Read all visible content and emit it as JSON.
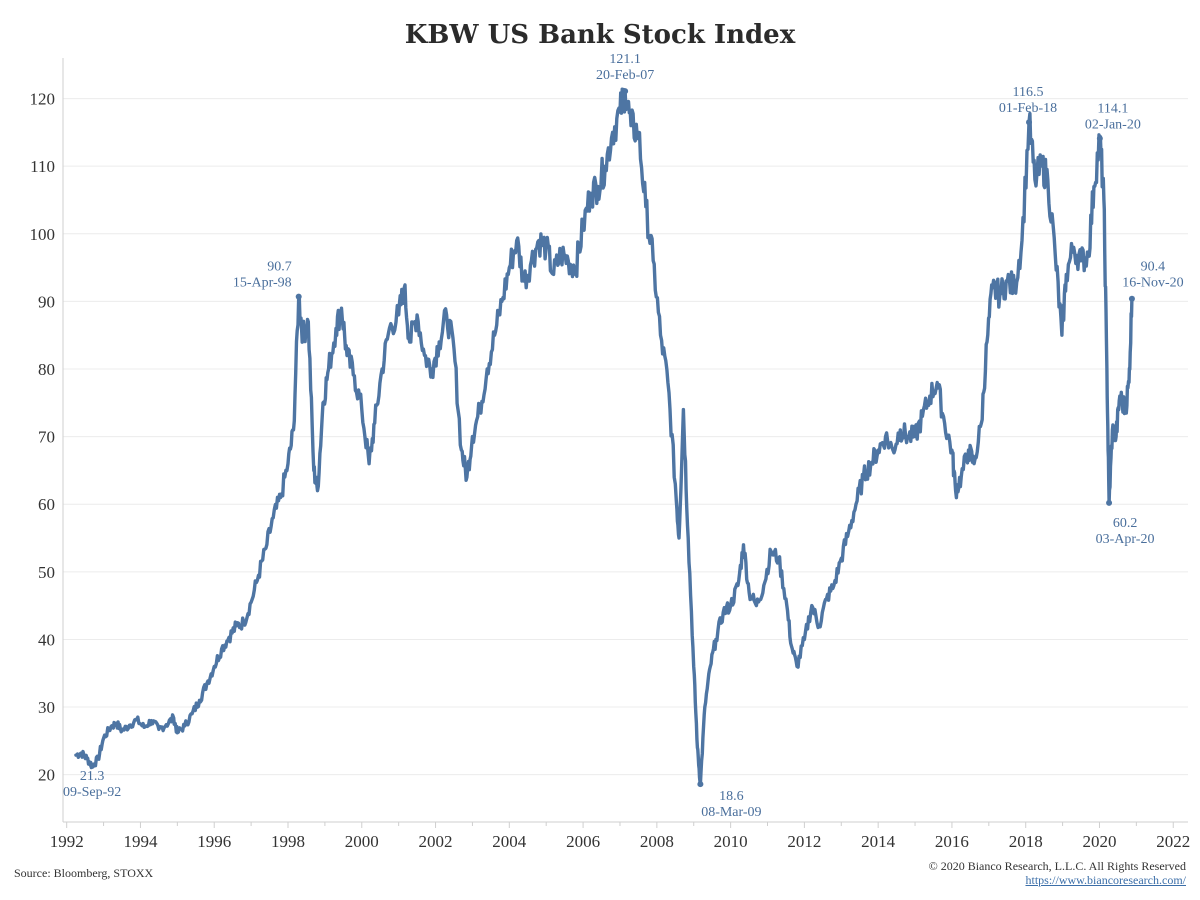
{
  "chart_data": {
    "type": "line",
    "title": "KBW US Bank Stock Index",
    "xlabel": "",
    "ylabel": "",
    "xlim": [
      1991.9,
      2022.4
    ],
    "ylim": [
      13,
      126
    ],
    "x_ticks": [
      "1992",
      "1994",
      "1996",
      "1998",
      "2000",
      "2002",
      "2004",
      "2006",
      "2008",
      "2010",
      "2012",
      "2014",
      "2016",
      "2018",
      "2020",
      "2022"
    ],
    "y_ticks": [
      20,
      30,
      40,
      50,
      60,
      70,
      80,
      90,
      100,
      110,
      120
    ],
    "grid": true,
    "legend": "none",
    "colors": {
      "series": "#4e75a3",
      "annotation": "#4a6f9c"
    },
    "series": [
      {
        "points": [
          [
            1992.25,
            22.9
          ],
          [
            1992.4,
            23.2
          ],
          [
            1992.55,
            22.4
          ],
          [
            1992.69,
            21.3
          ],
          [
            1992.85,
            22.3
          ],
          [
            1993.0,
            25.4
          ],
          [
            1993.2,
            27.1
          ],
          [
            1993.35,
            27.6
          ],
          [
            1993.5,
            26.5
          ],
          [
            1993.7,
            27.3
          ],
          [
            1993.9,
            28.1
          ],
          [
            1994.1,
            27.0
          ],
          [
            1994.3,
            28.0
          ],
          [
            1994.5,
            26.7
          ],
          [
            1994.7,
            27.4
          ],
          [
            1994.9,
            28.4
          ],
          [
            1995.0,
            26.2
          ],
          [
            1995.2,
            27.2
          ],
          [
            1995.4,
            29.0
          ],
          [
            1995.6,
            31.0
          ],
          [
            1995.8,
            33.5
          ],
          [
            1996.0,
            36.0
          ],
          [
            1996.2,
            38.6
          ],
          [
            1996.4,
            40.3
          ],
          [
            1996.6,
            42.0
          ],
          [
            1996.8,
            42.5
          ],
          [
            1997.0,
            45.5
          ],
          [
            1997.2,
            49.5
          ],
          [
            1997.4,
            53.5
          ],
          [
            1997.6,
            58.0
          ],
          [
            1997.8,
            61.0
          ],
          [
            1998.0,
            66.0
          ],
          [
            1998.15,
            71.0
          ],
          [
            1998.29,
            90.7
          ],
          [
            1998.4,
            85.0
          ],
          [
            1998.55,
            87.0
          ],
          [
            1998.7,
            65.0
          ],
          [
            1998.8,
            62.0
          ],
          [
            1998.95,
            75.0
          ],
          [
            1999.1,
            80.0
          ],
          [
            1999.3,
            86.0
          ],
          [
            1999.45,
            89.0
          ],
          [
            1999.6,
            82.0
          ],
          [
            1999.8,
            79.0
          ],
          [
            2000.0,
            74.0
          ],
          [
            2000.2,
            66.0
          ],
          [
            2000.35,
            72.0
          ],
          [
            2000.55,
            80.0
          ],
          [
            2000.75,
            86.0
          ],
          [
            2001.0,
            88.0
          ],
          [
            2001.15,
            92.0
          ],
          [
            2001.3,
            84.0
          ],
          [
            2001.5,
            88.0
          ],
          [
            2001.7,
            82.0
          ],
          [
            2001.9,
            80.0
          ],
          [
            2002.1,
            84.0
          ],
          [
            2002.3,
            88.0
          ],
          [
            2002.5,
            83.0
          ],
          [
            2002.7,
            68.0
          ],
          [
            2002.85,
            64.0
          ],
          [
            2003.0,
            70.0
          ],
          [
            2003.2,
            74.0
          ],
          [
            2003.4,
            80.0
          ],
          [
            2003.6,
            85.0
          ],
          [
            2003.8,
            90.0
          ],
          [
            2004.0,
            95.0
          ],
          [
            2004.2,
            99.0
          ],
          [
            2004.4,
            93.0
          ],
          [
            2004.6,
            96.0
          ],
          [
            2004.8,
            99.0
          ],
          [
            2005.0,
            98.0
          ],
          [
            2005.2,
            94.0
          ],
          [
            2005.4,
            97.0
          ],
          [
            2005.6,
            96.0
          ],
          [
            2005.8,
            95.0
          ],
          [
            2006.0,
            101.0
          ],
          [
            2006.2,
            106.0
          ],
          [
            2006.4,
            107.0
          ],
          [
            2006.6,
            110.0
          ],
          [
            2006.8,
            115.0
          ],
          [
            2007.0,
            118.0
          ],
          [
            2007.14,
            121.1
          ],
          [
            2007.3,
            116.0
          ],
          [
            2007.5,
            115.0
          ],
          [
            2007.7,
            104.0
          ],
          [
            2007.9,
            96.0
          ],
          [
            2008.1,
            85.0
          ],
          [
            2008.3,
            78.0
          ],
          [
            2008.5,
            63.0
          ],
          [
            2008.6,
            55.0
          ],
          [
            2008.72,
            74.0
          ],
          [
            2008.85,
            55.0
          ],
          [
            2009.0,
            36.0
          ],
          [
            2009.1,
            24.0
          ],
          [
            2009.18,
            18.6
          ],
          [
            2009.3,
            30.0
          ],
          [
            2009.45,
            36.0
          ],
          [
            2009.6,
            40.0
          ],
          [
            2009.8,
            44.0
          ],
          [
            2010.0,
            45.0
          ],
          [
            2010.2,
            48.0
          ],
          [
            2010.35,
            54.0
          ],
          [
            2010.5,
            47.0
          ],
          [
            2010.7,
            45.0
          ],
          [
            2010.9,
            48.0
          ],
          [
            2011.1,
            53.0
          ],
          [
            2011.3,
            52.0
          ],
          [
            2011.5,
            46.0
          ],
          [
            2011.65,
            39.0
          ],
          [
            2011.8,
            36.0
          ],
          [
            2012.0,
            40.0
          ],
          [
            2012.2,
            45.0
          ],
          [
            2012.4,
            42.0
          ],
          [
            2012.6,
            46.0
          ],
          [
            2012.8,
            48.0
          ],
          [
            2013.0,
            52.0
          ],
          [
            2013.2,
            56.0
          ],
          [
            2013.4,
            60.0
          ],
          [
            2013.6,
            64.0
          ],
          [
            2013.8,
            66.0
          ],
          [
            2014.0,
            68.0
          ],
          [
            2014.2,
            70.0
          ],
          [
            2014.4,
            68.0
          ],
          [
            2014.6,
            71.0
          ],
          [
            2014.8,
            70.0
          ],
          [
            2015.0,
            70.0
          ],
          [
            2015.2,
            73.0
          ],
          [
            2015.4,
            76.0
          ],
          [
            2015.6,
            78.0
          ],
          [
            2015.8,
            72.0
          ],
          [
            2016.0,
            68.0
          ],
          [
            2016.1,
            62.0
          ],
          [
            2016.25,
            64.0
          ],
          [
            2016.45,
            68.0
          ],
          [
            2016.6,
            66.0
          ],
          [
            2016.8,
            72.0
          ],
          [
            2016.95,
            84.0
          ],
          [
            2017.1,
            92.0
          ],
          [
            2017.3,
            91.0
          ],
          [
            2017.5,
            93.0
          ],
          [
            2017.7,
            92.0
          ],
          [
            2017.9,
            99.0
          ],
          [
            2018.09,
            116.5
          ],
          [
            2018.25,
            108.0
          ],
          [
            2018.45,
            110.0
          ],
          [
            2018.6,
            108.0
          ],
          [
            2018.8,
            97.0
          ],
          [
            2018.98,
            85.0
          ],
          [
            2019.1,
            94.0
          ],
          [
            2019.3,
            98.0
          ],
          [
            2019.5,
            96.0
          ],
          [
            2019.7,
            97.0
          ],
          [
            2019.85,
            107.0
          ],
          [
            2020.01,
            114.1
          ],
          [
            2020.12,
            105.0
          ],
          [
            2020.2,
            80.0
          ],
          [
            2020.26,
            60.2
          ],
          [
            2020.35,
            71.0
          ],
          [
            2020.45,
            70.0
          ],
          [
            2020.55,
            76.0
          ],
          [
            2020.7,
            74.0
          ],
          [
            2020.8,
            78.0
          ],
          [
            2020.88,
            90.4
          ]
        ]
      }
    ],
    "annotations": [
      {
        "value": "21.3",
        "date": "09-Sep-92",
        "x": 1992.69,
        "y": 21.3
      },
      {
        "value": "90.7",
        "date": "15-Apr-98",
        "x": 1998.29,
        "y": 90.7
      },
      {
        "value": "121.1",
        "date": "20-Feb-07",
        "x": 2007.14,
        "y": 121.1
      },
      {
        "value": "18.6",
        "date": "08-Mar-09",
        "x": 2009.18,
        "y": 18.6
      },
      {
        "value": "116.5",
        "date": "01-Feb-18",
        "x": 2018.09,
        "y": 116.5
      },
      {
        "value": "114.1",
        "date": "02-Jan-20",
        "x": 2020.01,
        "y": 114.1
      },
      {
        "value": "60.2",
        "date": "03-Apr-20",
        "x": 2020.26,
        "y": 60.2
      },
      {
        "value": "90.4",
        "date": "16-Nov-20",
        "x": 2020.88,
        "y": 90.4
      }
    ]
  },
  "footer": {
    "source": "Source: Bloomberg, STOXX",
    "copyright": "© 2020 Bianco Research, L.L.C. All Rights Reserved",
    "url": "https://www.biancoresearch.com/"
  }
}
